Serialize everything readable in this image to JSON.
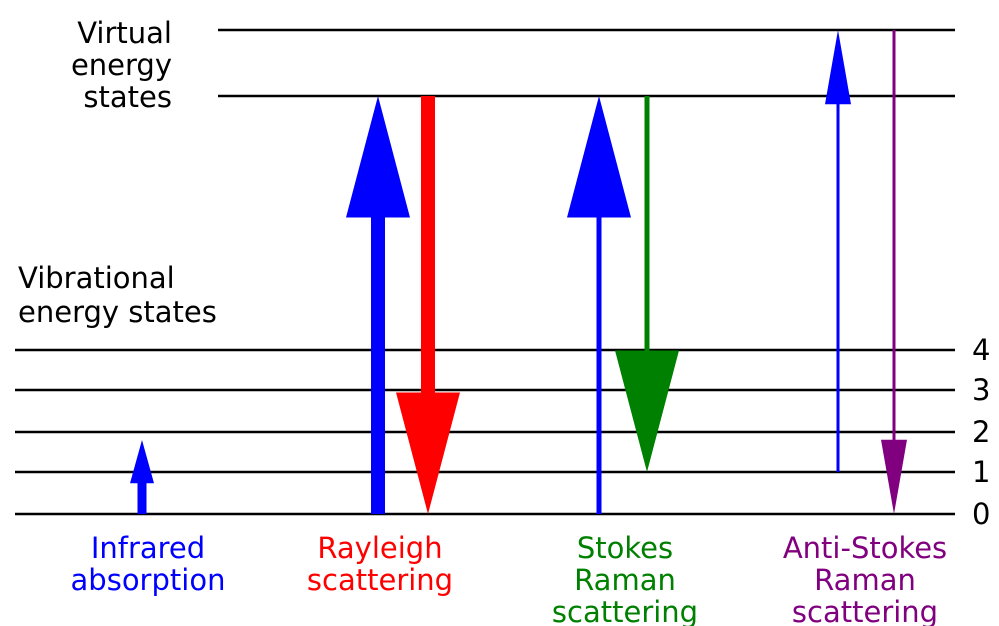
{
  "virtual_label": [
    "Virtual",
    "energy",
    "states"
  ],
  "vibrational_label": [
    "Vibrational",
    "energy states"
  ],
  "levels": [
    "4",
    "3",
    "2",
    "1",
    "0"
  ],
  "processes": [
    {
      "label": [
        "Infrared",
        "absorption"
      ]
    },
    {
      "label": [
        "Rayleigh",
        "scattering"
      ]
    },
    {
      "label": [
        "Stokes",
        "Raman",
        "scattering"
      ]
    },
    {
      "label": [
        "Anti-Stokes",
        "Raman",
        "scattering"
      ]
    }
  ]
}
